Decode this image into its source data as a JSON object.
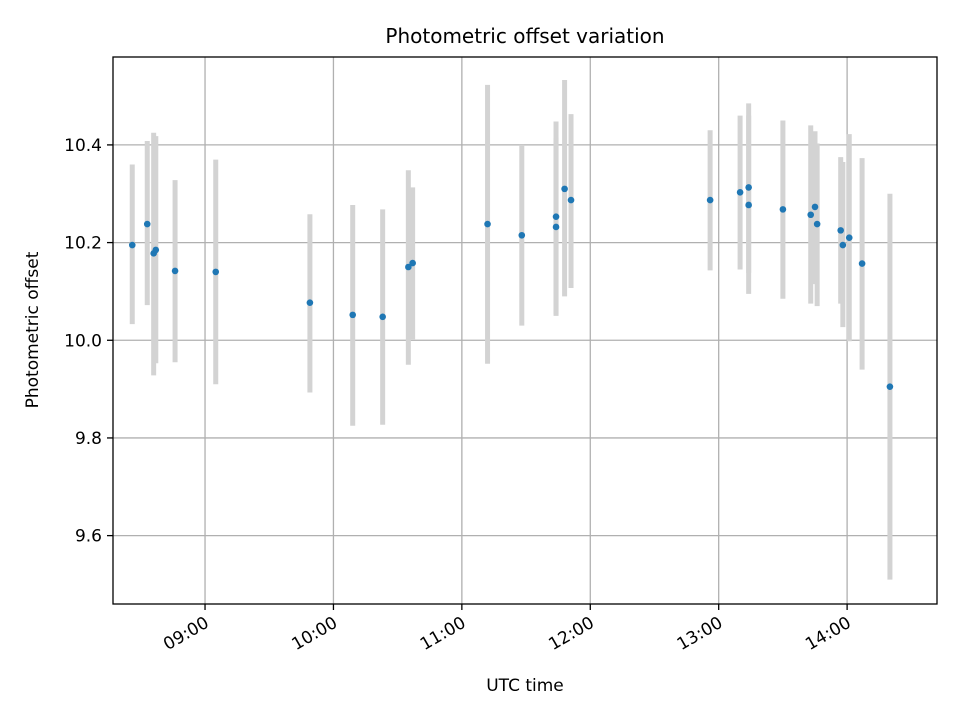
{
  "chart_data": {
    "type": "scatter",
    "title": "Photometric offset variation",
    "xlabel": "UTC time",
    "ylabel": "Photometric offset",
    "x_ticks": [
      "09:00",
      "10:00",
      "11:00",
      "12:00",
      "13:00",
      "14:00"
    ],
    "y_ticks": [
      "9.6",
      "9.8",
      "10.0",
      "10.2",
      "10.4"
    ],
    "xlim": [
      "08:17",
      "14:42"
    ],
    "ylim": [
      9.46,
      10.58
    ],
    "grid": true,
    "colors": {
      "point": "#1f77b4",
      "errorbar": "#d3d3d3",
      "grid": "#b0b0b0"
    },
    "points": [
      {
        "x": "08:26",
        "y": 10.195,
        "lo": 10.033,
        "hi": 10.36
      },
      {
        "x": "08:33",
        "y": 10.238,
        "lo": 10.072,
        "hi": 10.408
      },
      {
        "x": "08:36",
        "y": 10.178,
        "lo": 9.928,
        "hi": 10.425
      },
      {
        "x": "08:37",
        "y": 10.185,
        "lo": 9.953,
        "hi": 10.418
      },
      {
        "x": "08:46",
        "y": 10.142,
        "lo": 9.955,
        "hi": 10.328
      },
      {
        "x": "09:05",
        "y": 10.14,
        "lo": 9.91,
        "hi": 10.37
      },
      {
        "x": "09:49",
        "y": 10.077,
        "lo": 9.893,
        "hi": 10.258
      },
      {
        "x": "10:09",
        "y": 10.052,
        "lo": 9.825,
        "hi": 10.277
      },
      {
        "x": "10:23",
        "y": 10.048,
        "lo": 9.827,
        "hi": 10.268
      },
      {
        "x": "10:35",
        "y": 10.15,
        "lo": 9.95,
        "hi": 10.348
      },
      {
        "x": "10:37",
        "y": 10.158,
        "lo": 10.002,
        "hi": 10.313
      },
      {
        "x": "11:12",
        "y": 10.238,
        "lo": 9.952,
        "hi": 10.523
      },
      {
        "x": "11:28",
        "y": 10.215,
        "lo": 10.03,
        "hi": 10.4
      },
      {
        "x": "11:44",
        "y": 10.232,
        "lo": 10.05,
        "hi": 10.415
      },
      {
        "x": "11:44",
        "y": 10.253,
        "lo": 10.053,
        "hi": 10.448
      },
      {
        "x": "11:48",
        "y": 10.31,
        "lo": 10.09,
        "hi": 10.533
      },
      {
        "x": "11:51",
        "y": 10.287,
        "lo": 10.107,
        "hi": 10.463
      },
      {
        "x": "12:56",
        "y": 10.287,
        "lo": 10.143,
        "hi": 10.43
      },
      {
        "x": "13:10",
        "y": 10.303,
        "lo": 10.145,
        "hi": 10.46
      },
      {
        "x": "13:14",
        "y": 10.313,
        "lo": 10.138,
        "hi": 10.485
      },
      {
        "x": "13:14",
        "y": 10.277,
        "lo": 10.095,
        "hi": 10.46
      },
      {
        "x": "13:30",
        "y": 10.268,
        "lo": 10.085,
        "hi": 10.45
      },
      {
        "x": "13:43",
        "y": 10.257,
        "lo": 10.075,
        "hi": 10.44
      },
      {
        "x": "13:45",
        "y": 10.273,
        "lo": 10.115,
        "hi": 10.428
      },
      {
        "x": "13:46",
        "y": 10.238,
        "lo": 10.07,
        "hi": 10.403
      },
      {
        "x": "13:57",
        "y": 10.225,
        "lo": 10.075,
        "hi": 10.375
      },
      {
        "x": "13:58",
        "y": 10.195,
        "lo": 10.027,
        "hi": 10.365
      },
      {
        "x": "14:01",
        "y": 10.21,
        "lo": 9.998,
        "hi": 10.422
      },
      {
        "x": "14:07",
        "y": 10.157,
        "lo": 9.94,
        "hi": 10.373
      },
      {
        "x": "14:20",
        "y": 9.905,
        "lo": 9.51,
        "hi": 10.3
      }
    ]
  }
}
